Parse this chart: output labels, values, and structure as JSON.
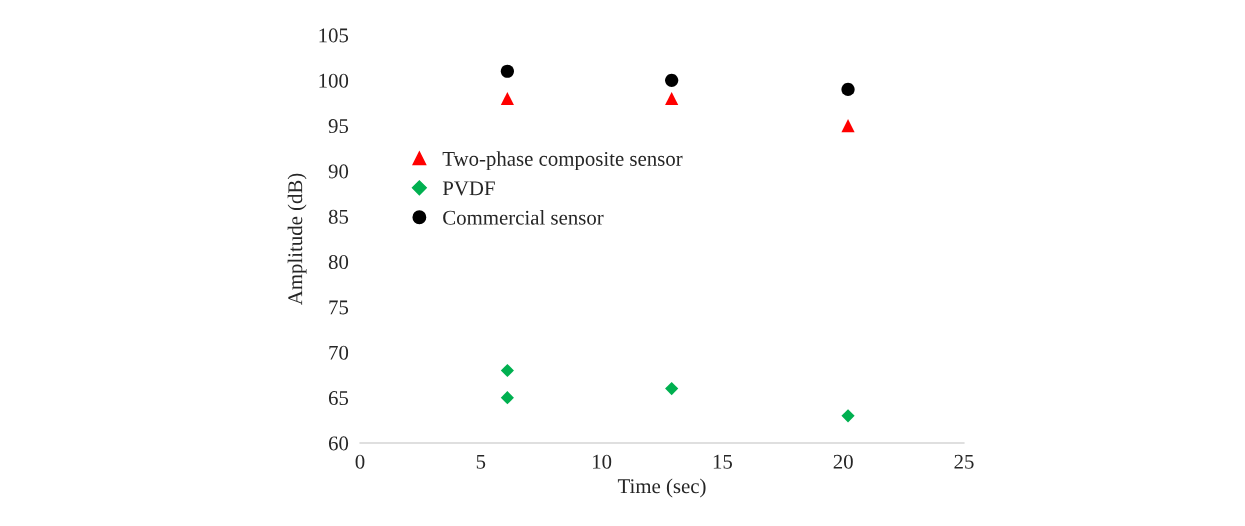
{
  "chart_data": {
    "type": "scatter",
    "xlabel": "Time (sec)",
    "ylabel": "Amplitude (dB)",
    "xlim": [
      0,
      25
    ],
    "xticks": [
      0,
      5,
      10,
      15,
      20,
      25
    ],
    "ylim": [
      60,
      105
    ],
    "yticks": [
      60,
      65,
      70,
      75,
      80,
      85,
      90,
      95,
      100,
      105
    ],
    "grid": false,
    "legend": "left",
    "series": [
      {
        "name": "Two-phase composite sensor",
        "color": "#ff0000",
        "marker": "triangle",
        "x": [
          6.1,
          12.9,
          20.2
        ],
        "values": [
          98,
          98,
          95
        ]
      },
      {
        "name": "PVDF",
        "color": "#00b050",
        "marker": "diamond",
        "x": [
          6.1,
          6.1,
          12.9,
          20.2
        ],
        "values": [
          68,
          65,
          66,
          63
        ]
      },
      {
        "name": "Commercial sensor",
        "color": "#000000",
        "marker": "circle",
        "x": [
          6.1,
          12.9,
          20.2
        ],
        "values": [
          101,
          100,
          99
        ]
      }
    ]
  }
}
